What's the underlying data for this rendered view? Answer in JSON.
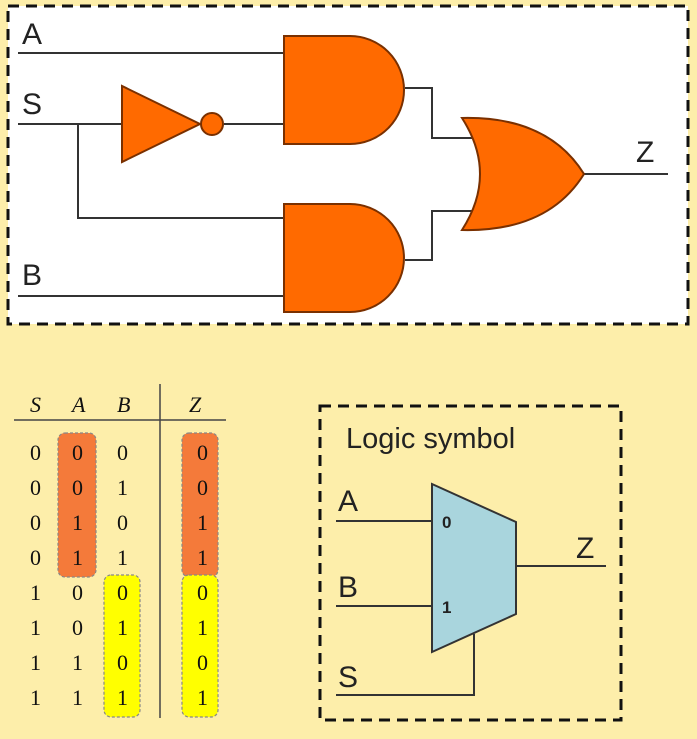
{
  "circuit": {
    "inputs": [
      "A",
      "S",
      "B"
    ],
    "output": "Z",
    "colors": {
      "gate_fill": "#ff6a00",
      "gate_stroke": "#7a3000",
      "panel_bg": "#ffffff"
    }
  },
  "truth_table": {
    "headers": [
      "S",
      "A",
      "B",
      "Z"
    ],
    "rows": [
      [
        "0",
        "0",
        "0",
        "0"
      ],
      [
        "0",
        "0",
        "1",
        "0"
      ],
      [
        "0",
        "1",
        "0",
        "1"
      ],
      [
        "0",
        "1",
        "1",
        "1"
      ],
      [
        "1",
        "0",
        "0",
        "0"
      ],
      [
        "1",
        "0",
        "1",
        "1"
      ],
      [
        "1",
        "1",
        "0",
        "0"
      ],
      [
        "1",
        "1",
        "1",
        "1"
      ]
    ],
    "colors": {
      "select_0": "#f47a3a",
      "select_1": "#ffff00"
    }
  },
  "logic_symbol": {
    "title": "Logic symbol",
    "inputs": [
      "A",
      "B"
    ],
    "select": "S",
    "output": "Z",
    "pin_labels": [
      "0",
      "1"
    ],
    "colors": {
      "mux_fill": "#a9d5dd",
      "mux_stroke": "#333333"
    }
  }
}
